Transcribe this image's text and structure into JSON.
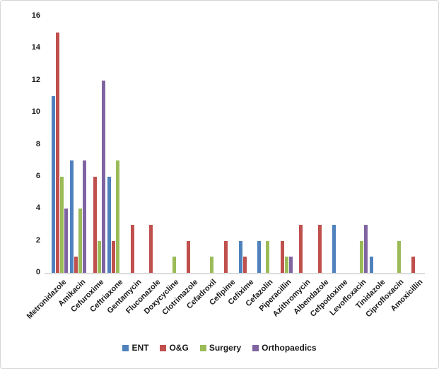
{
  "chart_data": {
    "type": "bar",
    "title": "",
    "xlabel": "",
    "ylabel": "",
    "categories": [
      "Metronidazole",
      "Amikacin",
      "Cefuroxime",
      "Ceftriaxone",
      "Gentamycin",
      "Fluconazole",
      "Doxycycline",
      "Clotrimazole",
      "Cefadroxil",
      "Cefipime",
      "Cefixime",
      "Cefazolin",
      "Piperacillin",
      "Azithromycin",
      "Albendazole",
      "Cefpodoxime",
      "Levofloxacin",
      "Tinidazole",
      "Ciprofloxacin",
      "Amoxicillin"
    ],
    "series": [
      {
        "name": "ENT",
        "color": "#4F81BD",
        "values": [
          11,
          7,
          0,
          6,
          0,
          0,
          0,
          0,
          0,
          0,
          2,
          2,
          0,
          0,
          0,
          3,
          0,
          1,
          0,
          0
        ]
      },
      {
        "name": "O&G",
        "color": "#C0504D",
        "values": [
          15,
          1,
          6,
          2,
          3,
          3,
          0,
          2,
          0,
          2,
          1,
          0,
          2,
          3,
          3,
          0,
          0,
          0,
          0,
          1
        ]
      },
      {
        "name": "Surgery",
        "color": "#9BBB59",
        "values": [
          6,
          4,
          2,
          7,
          0,
          0,
          1,
          0,
          1,
          0,
          0,
          2,
          1,
          0,
          0,
          0,
          2,
          0,
          2,
          0
        ]
      },
      {
        "name": "Orthopaedics",
        "color": "#8064A2",
        "values": [
          4,
          7,
          12,
          0,
          0,
          0,
          0,
          0,
          0,
          0,
          0,
          0,
          1,
          0,
          0,
          0,
          3,
          0,
          0,
          0
        ]
      }
    ],
    "ylim": [
      0,
      16
    ],
    "ytick_step": 2,
    "ytick_labels": [
      "0",
      "2",
      "4",
      "6",
      "8",
      "10",
      "12",
      "14",
      "16"
    ],
    "grid": false,
    "legend_position": "bottom-center",
    "x_label_rotation_deg": 45
  },
  "colors": {
    "background": "#FFFFFF",
    "frame_border": "#D6D6D6",
    "axis_line": "#DCDCDC",
    "text": "#1A1A1A"
  }
}
